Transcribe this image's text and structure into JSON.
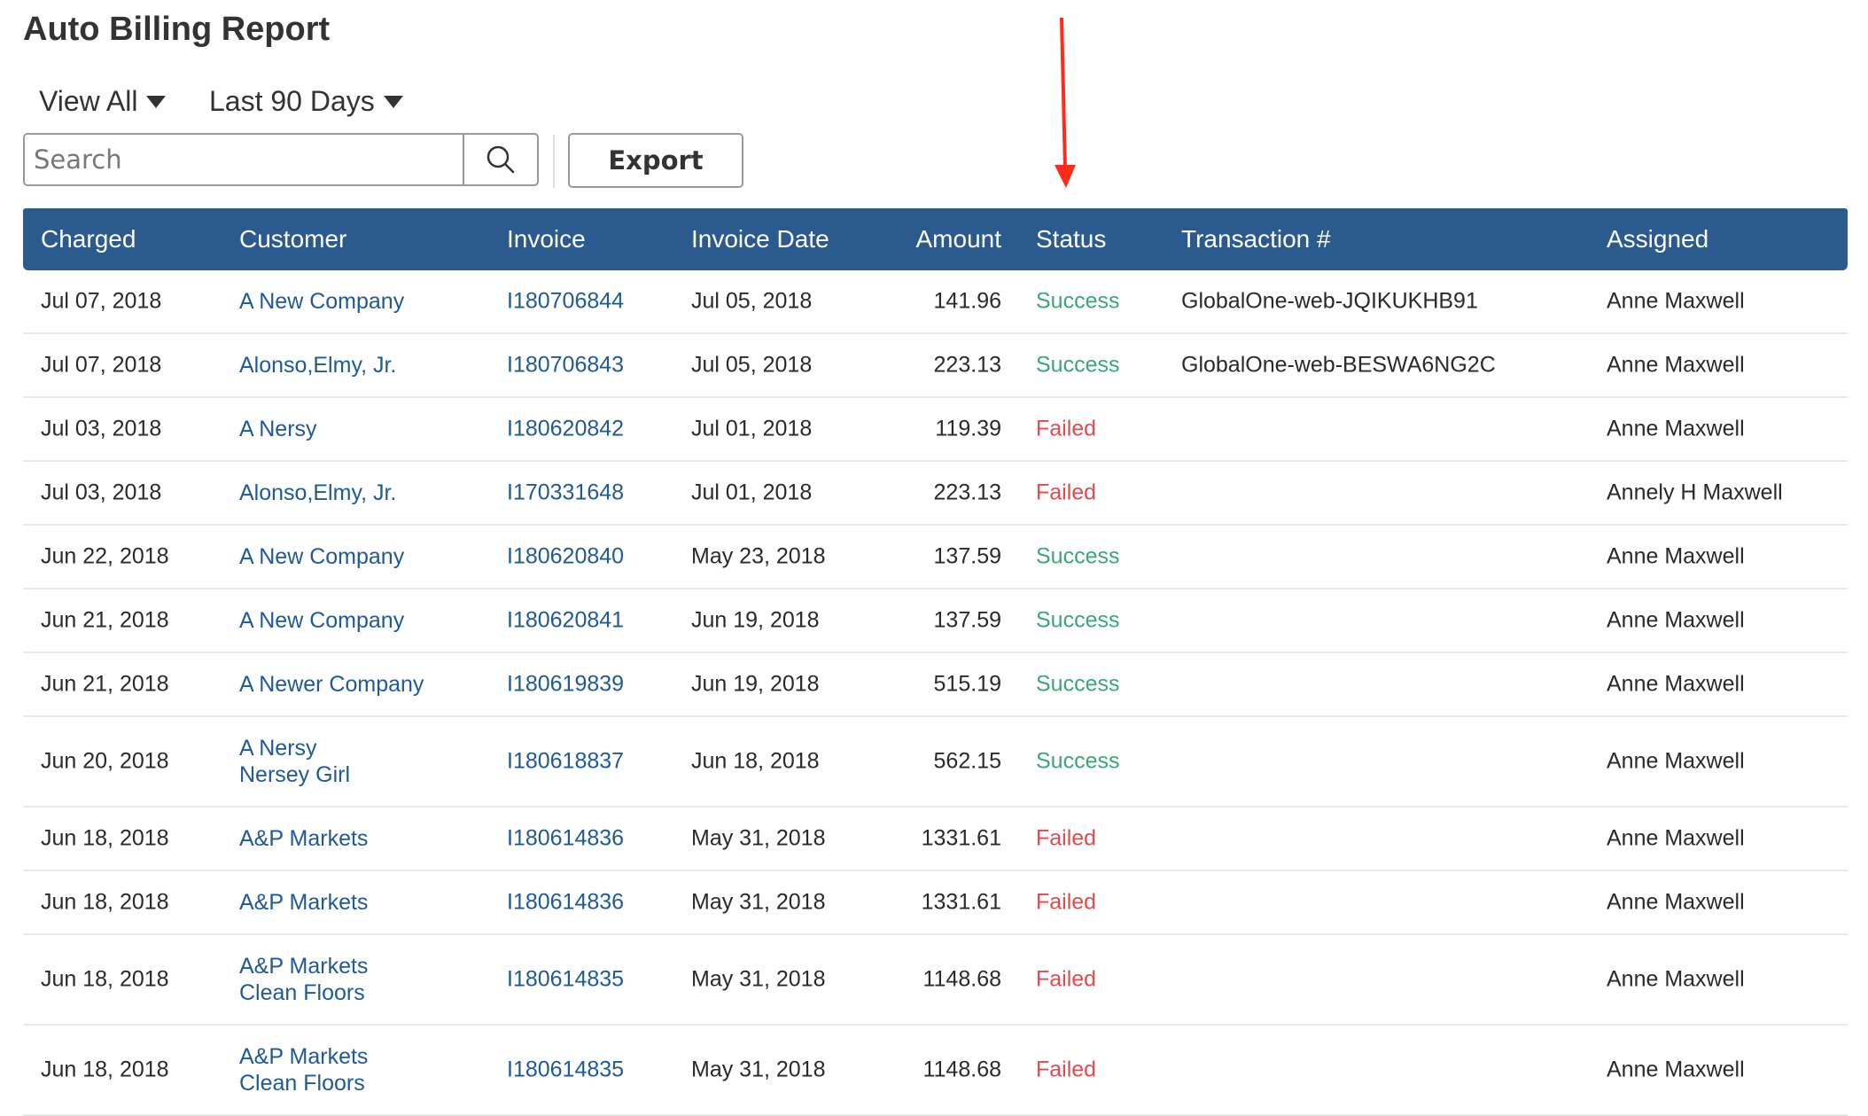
{
  "title": "Auto Billing Report",
  "filters": {
    "view": "View All",
    "range": "Last 90 Days"
  },
  "search": {
    "placeholder": "Search",
    "value": ""
  },
  "export_label": "Export",
  "colors": {
    "header": "#2b5a8f",
    "link": "#1d5a97",
    "success": "#3aa876",
    "failed": "#e5484d",
    "annotation_arrow": "#ff2a1a"
  },
  "columns": [
    "Charged",
    "Customer",
    "Invoice",
    "Invoice Date",
    "Amount",
    "Status",
    "Transaction #",
    "Assigned"
  ],
  "rows": [
    {
      "charged": "Jul 07, 2018",
      "customer": [
        "A New Company"
      ],
      "invoice": "I180706844",
      "invoice_date": "Jul 05, 2018",
      "amount": "141.96",
      "status": "Success",
      "transaction": "GlobalOne-web-JQIKUKHB91",
      "assigned": "Anne Maxwell"
    },
    {
      "charged": "Jul 07, 2018",
      "customer": [
        "Alonso,Elmy, Jr."
      ],
      "invoice": "I180706843",
      "invoice_date": "Jul 05, 2018",
      "amount": "223.13",
      "status": "Success",
      "transaction": "GlobalOne-web-BESWA6NG2C",
      "assigned": "Anne Maxwell"
    },
    {
      "charged": "Jul 03, 2018",
      "customer": [
        "A Nersy"
      ],
      "invoice": "I180620842",
      "invoice_date": "Jul 01, 2018",
      "amount": "119.39",
      "status": "Failed",
      "transaction": "",
      "assigned": "Anne Maxwell"
    },
    {
      "charged": "Jul 03, 2018",
      "customer": [
        "Alonso,Elmy, Jr."
      ],
      "invoice": "I170331648",
      "invoice_date": "Jul 01, 2018",
      "amount": "223.13",
      "status": "Failed",
      "transaction": "",
      "assigned": "Annely H Maxwell"
    },
    {
      "charged": "Jun 22, 2018",
      "customer": [
        "A New Company"
      ],
      "invoice": "I180620840",
      "invoice_date": "May 23, 2018",
      "amount": "137.59",
      "status": "Success",
      "transaction": "",
      "assigned": "Anne Maxwell"
    },
    {
      "charged": "Jun 21, 2018",
      "customer": [
        "A New Company"
      ],
      "invoice": "I180620841",
      "invoice_date": "Jun 19, 2018",
      "amount": "137.59",
      "status": "Success",
      "transaction": "",
      "assigned": "Anne Maxwell"
    },
    {
      "charged": "Jun 21, 2018",
      "customer": [
        "A Newer Company"
      ],
      "invoice": "I180619839",
      "invoice_date": "Jun 19, 2018",
      "amount": "515.19",
      "status": "Success",
      "transaction": "",
      "assigned": "Anne Maxwell"
    },
    {
      "charged": "Jun 20, 2018",
      "customer": [
        "A Nersy",
        "Nersey Girl"
      ],
      "invoice": "I180618837",
      "invoice_date": "Jun 18, 2018",
      "amount": "562.15",
      "status": "Success",
      "transaction": "",
      "assigned": "Anne Maxwell"
    },
    {
      "charged": "Jun 18, 2018",
      "customer": [
        "A&P Markets"
      ],
      "invoice": "I180614836",
      "invoice_date": "May 31, 2018",
      "amount": "1331.61",
      "status": "Failed",
      "transaction": "",
      "assigned": "Anne Maxwell"
    },
    {
      "charged": "Jun 18, 2018",
      "customer": [
        "A&P Markets"
      ],
      "invoice": "I180614836",
      "invoice_date": "May 31, 2018",
      "amount": "1331.61",
      "status": "Failed",
      "transaction": "",
      "assigned": "Anne Maxwell"
    },
    {
      "charged": "Jun 18, 2018",
      "customer": [
        "A&P Markets",
        "Clean Floors"
      ],
      "invoice": "I180614835",
      "invoice_date": "May 31, 2018",
      "amount": "1148.68",
      "status": "Failed",
      "transaction": "",
      "assigned": "Anne Maxwell"
    },
    {
      "charged": "Jun 18, 2018",
      "customer": [
        "A&P Markets",
        "Clean Floors"
      ],
      "invoice": "I180614835",
      "invoice_date": "May 31, 2018",
      "amount": "1148.68",
      "status": "Failed",
      "transaction": "",
      "assigned": "Anne Maxwell"
    }
  ]
}
